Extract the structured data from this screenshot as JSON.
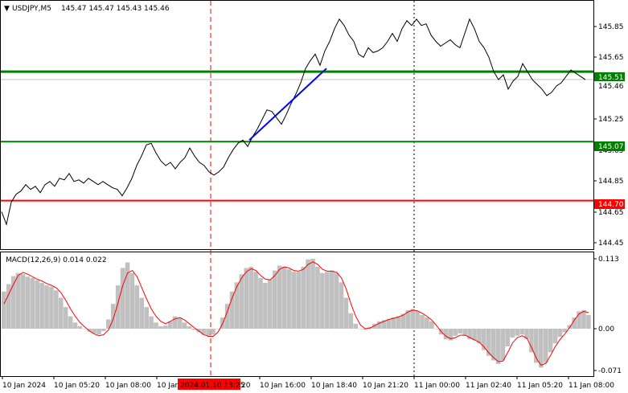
{
  "header": {
    "arrow": "▼",
    "symbol": "USDJPY,M5",
    "ohlc": "145.47 145.47 145.43 145.46"
  },
  "macd": {
    "label": "MACD(12,26,9) 0.014 0.022",
    "axis_labels": [
      "0.113",
      "0.00",
      "-0.071"
    ]
  },
  "price_axis": {
    "labels": [
      "145.85",
      "145.65",
      "145.45",
      "145.25",
      "145.05",
      "144.85",
      "144.65",
      "144.45"
    ]
  },
  "levels": [
    {
      "name": "level-145-51",
      "value": 145.51,
      "label": "145.51",
      "color": "#008000"
    },
    {
      "name": "level-145-07",
      "value": 145.07,
      "label": "145.07",
      "color": "#008000"
    },
    {
      "name": "level-144-70",
      "value": 144.7,
      "label": "144.70",
      "color": "#ff0000"
    }
  ],
  "current_price": {
    "value": 145.46,
    "label": "145.46"
  },
  "time_axis": {
    "labels": [
      "10 Jan 2024",
      "10 Jan 05:20",
      "10 Jan 08:00",
      "10 Jan 10:40",
      "10 Jan 16:00",
      "10 Jan 18:40",
      "10 Jan 21:20",
      "11 Jan 00:00",
      "11 Jan 02:40",
      "11 Jan 05:20",
      "11 Jan 08:00"
    ],
    "highlight": "2024.01.10 13:25",
    "highlight_trailing": "20"
  },
  "colors": {
    "price_line": "#000000",
    "trend_line": "#0000ff",
    "macd_hist": "#c0c0c0",
    "signal": "#ff0000",
    "cursor_line": "#ff0000",
    "day_separator": "#000000"
  },
  "chart_data": {
    "type": "line",
    "title": "USDJPY,M5",
    "ylim": [
      144.4,
      145.95
    ],
    "price_series": [
      [
        0,
        144.63
      ],
      [
        3,
        144.55
      ],
      [
        6,
        144.69
      ],
      [
        9,
        144.74
      ],
      [
        12,
        144.76
      ],
      [
        15,
        144.8
      ],
      [
        18,
        144.77
      ],
      [
        21,
        144.79
      ],
      [
        24,
        144.75
      ],
      [
        27,
        144.8
      ],
      [
        30,
        144.82
      ],
      [
        33,
        144.79
      ],
      [
        36,
        144.84
      ],
      [
        39,
        144.83
      ],
      [
        42,
        144.87
      ],
      [
        45,
        144.82
      ],
      [
        48,
        144.83
      ],
      [
        51,
        144.81
      ],
      [
        54,
        144.84
      ],
      [
        57,
        144.82
      ],
      [
        60,
        144.8
      ],
      [
        63,
        144.82
      ],
      [
        66,
        144.8
      ],
      [
        69,
        144.78
      ],
      [
        72,
        144.77
      ],
      [
        75,
        144.73
      ],
      [
        78,
        144.78
      ],
      [
        81,
        144.84
      ],
      [
        84,
        144.92
      ],
      [
        87,
        144.98
      ],
      [
        90,
        145.05
      ],
      [
        93,
        145.06
      ],
      [
        96,
        145.0
      ],
      [
        99,
        144.95
      ],
      [
        102,
        144.92
      ],
      [
        105,
        144.94
      ],
      [
        108,
        144.9
      ],
      [
        111,
        144.94
      ],
      [
        114,
        144.97
      ],
      [
        117,
        145.03
      ],
      [
        120,
        144.98
      ],
      [
        123,
        144.94
      ],
      [
        126,
        144.92
      ],
      [
        129,
        144.88
      ],
      [
        132,
        144.86
      ],
      [
        135,
        144.88
      ],
      [
        138,
        144.91
      ],
      [
        141,
        144.97
      ],
      [
        144,
        145.02
      ],
      [
        147,
        145.06
      ],
      [
        150,
        145.08
      ],
      [
        153,
        145.04
      ],
      [
        156,
        145.1
      ],
      [
        159,
        145.15
      ],
      [
        162,
        145.21
      ],
      [
        165,
        145.27
      ],
      [
        168,
        145.26
      ],
      [
        171,
        145.22
      ],
      [
        174,
        145.18
      ],
      [
        177,
        145.24
      ],
      [
        180,
        145.31
      ],
      [
        183,
        145.37
      ],
      [
        186,
        145.44
      ],
      [
        189,
        145.53
      ],
      [
        192,
        145.58
      ],
      [
        195,
        145.62
      ],
      [
        198,
        145.55
      ],
      [
        201,
        145.64
      ],
      [
        204,
        145.7
      ],
      [
        207,
        145.78
      ],
      [
        210,
        145.84
      ],
      [
        213,
        145.8
      ],
      [
        216,
        145.74
      ],
      [
        219,
        145.7
      ],
      [
        222,
        145.62
      ],
      [
        225,
        145.6
      ],
      [
        228,
        145.66
      ],
      [
        231,
        145.63
      ],
      [
        234,
        145.64
      ],
      [
        237,
        145.66
      ],
      [
        240,
        145.7
      ],
      [
        243,
        145.75
      ],
      [
        246,
        145.7
      ],
      [
        249,
        145.78
      ],
      [
        252,
        145.83
      ],
      [
        255,
        145.8
      ],
      [
        258,
        145.84
      ],
      [
        261,
        145.8
      ],
      [
        264,
        145.81
      ],
      [
        267,
        145.74
      ],
      [
        270,
        145.7
      ],
      [
        273,
        145.67
      ],
      [
        276,
        145.69
      ],
      [
        279,
        145.71
      ],
      [
        282,
        145.68
      ],
      [
        285,
        145.66
      ],
      [
        288,
        145.75
      ],
      [
        291,
        145.84
      ],
      [
        294,
        145.78
      ],
      [
        297,
        145.7
      ],
      [
        300,
        145.66
      ],
      [
        303,
        145.6
      ],
      [
        306,
        145.51
      ],
      [
        309,
        145.46
      ],
      [
        312,
        145.49
      ],
      [
        315,
        145.4
      ],
      [
        318,
        145.45
      ],
      [
        321,
        145.48
      ],
      [
        324,
        145.56
      ],
      [
        327,
        145.51
      ],
      [
        330,
        145.46
      ],
      [
        333,
        145.43
      ],
      [
        336,
        145.4
      ],
      [
        339,
        145.36
      ],
      [
        342,
        145.38
      ],
      [
        345,
        145.42
      ],
      [
        348,
        145.44
      ],
      [
        351,
        145.48
      ],
      [
        354,
        145.52
      ],
      [
        357,
        145.5
      ],
      [
        360,
        145.48
      ],
      [
        363,
        145.46
      ]
    ],
    "trend_line": {
      "from": [
        154,
        145.08
      ],
      "to": [
        202,
        145.53
      ]
    },
    "macd_hist": [
      0.06,
      0.072,
      0.085,
      0.09,
      0.088,
      0.084,
      0.082,
      0.078,
      0.074,
      0.07,
      0.068,
      0.062,
      0.05,
      0.035,
      0.02,
      0.01,
      0.004,
      0.0,
      -0.005,
      -0.008,
      -0.01,
      -0.004,
      0.015,
      0.04,
      0.07,
      0.098,
      0.107,
      0.09,
      0.07,
      0.05,
      0.035,
      0.02,
      0.01,
      0.004,
      0.005,
      0.012,
      0.02,
      0.018,
      0.01,
      0.004,
      -0.002,
      -0.006,
      -0.01,
      -0.012,
      -0.01,
      0.0,
      0.018,
      0.04,
      0.06,
      0.075,
      0.088,
      0.098,
      0.1,
      0.092,
      0.082,
      0.074,
      0.08,
      0.094,
      0.102,
      0.1,
      0.096,
      0.092,
      0.092,
      0.1,
      0.112,
      0.113,
      0.1,
      0.09,
      0.092,
      0.094,
      0.09,
      0.075,
      0.05,
      0.025,
      0.008,
      0.0,
      -0.002,
      0.003,
      0.008,
      0.012,
      0.014,
      0.016,
      0.018,
      0.02,
      0.024,
      0.03,
      0.032,
      0.028,
      0.022,
      0.018,
      0.012,
      0.0,
      -0.01,
      -0.018,
      -0.02,
      -0.012,
      -0.008,
      -0.012,
      -0.018,
      -0.02,
      -0.025,
      -0.036,
      -0.046,
      -0.054,
      -0.06,
      -0.054,
      -0.03,
      -0.015,
      -0.012,
      -0.01,
      -0.018,
      -0.04,
      -0.058,
      -0.066,
      -0.058,
      -0.04,
      -0.025,
      -0.014,
      -0.006,
      0.006,
      0.018,
      0.028,
      0.03,
      0.022
    ],
    "macd_signal": [
      0.04,
      0.056,
      0.072,
      0.086,
      0.091,
      0.088,
      0.084,
      0.08,
      0.077,
      0.073,
      0.07,
      0.066,
      0.058,
      0.046,
      0.032,
      0.02,
      0.01,
      0.003,
      -0.004,
      -0.009,
      -0.012,
      -0.01,
      -0.002,
      0.016,
      0.042,
      0.07,
      0.09,
      0.094,
      0.084,
      0.066,
      0.048,
      0.032,
      0.02,
      0.012,
      0.008,
      0.012,
      0.016,
      0.018,
      0.014,
      0.008,
      0.002,
      -0.004,
      -0.01,
      -0.013,
      -0.013,
      -0.006,
      0.008,
      0.028,
      0.05,
      0.068,
      0.082,
      0.092,
      0.097,
      0.094,
      0.086,
      0.08,
      0.079,
      0.086,
      0.096,
      0.1,
      0.098,
      0.094,
      0.093,
      0.096,
      0.104,
      0.108,
      0.104,
      0.096,
      0.093,
      0.093,
      0.091,
      0.082,
      0.064,
      0.04,
      0.02,
      0.006,
      0.0,
      0.001,
      0.005,
      0.009,
      0.012,
      0.015,
      0.017,
      0.019,
      0.022,
      0.027,
      0.03,
      0.029,
      0.025,
      0.02,
      0.014,
      0.005,
      -0.005,
      -0.013,
      -0.017,
      -0.015,
      -0.011,
      -0.011,
      -0.015,
      -0.019,
      -0.023,
      -0.031,
      -0.041,
      -0.049,
      -0.056,
      -0.055,
      -0.04,
      -0.024,
      -0.015,
      -0.012,
      -0.016,
      -0.032,
      -0.05,
      -0.062,
      -0.059,
      -0.045,
      -0.03,
      -0.018,
      -0.009,
      0.002,
      0.014,
      0.024,
      0.028,
      0.026
    ],
    "macd_ylim": [
      -0.071,
      0.113
    ]
  }
}
